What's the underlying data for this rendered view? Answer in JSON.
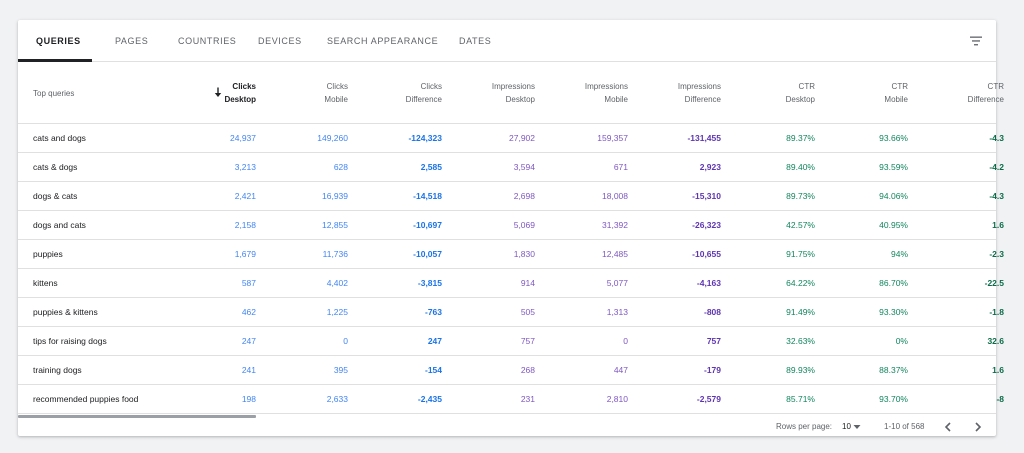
{
  "tabs": [
    "QUERIES",
    "PAGES",
    "COUNTRIES",
    "DEVICES",
    "SEARCH APPEARANCE",
    "DATES"
  ],
  "header": {
    "top_queries": "Top queries",
    "clicks_desktop": [
      "Clicks",
      "Desktop"
    ],
    "clicks_mobile": [
      "Clicks",
      "Mobile"
    ],
    "clicks_diff": [
      "Clicks",
      "Difference"
    ],
    "impr_desktop": [
      "Impressions",
      "Desktop"
    ],
    "impr_mobile": [
      "Impressions",
      "Mobile"
    ],
    "impr_diff": [
      "Impressions",
      "Difference"
    ],
    "ctr_desktop": [
      "CTR",
      "Desktop"
    ],
    "ctr_mobile": [
      "CTR",
      "Mobile"
    ],
    "ctr_diff": [
      "CTR",
      "Difference"
    ]
  },
  "rows": [
    {
      "q": "cats and dogs",
      "cd": "24,937",
      "cm": "149,260",
      "cdf": "-124,323",
      "id": "27,902",
      "im": "159,357",
      "idf": "-131,455",
      "td": "89.37%",
      "tm": "93.66%",
      "tdf": "-4.3"
    },
    {
      "q": "cats & dogs",
      "cd": "3,213",
      "cm": "628",
      "cdf": "2,585",
      "id": "3,594",
      "im": "671",
      "idf": "2,923",
      "td": "89.40%",
      "tm": "93.59%",
      "tdf": "-4.2"
    },
    {
      "q": "dogs & cats",
      "cd": "2,421",
      "cm": "16,939",
      "cdf": "-14,518",
      "id": "2,698",
      "im": "18,008",
      "idf": "-15,310",
      "td": "89.73%",
      "tm": "94.06%",
      "tdf": "-4.3"
    },
    {
      "q": "dogs and cats",
      "cd": "2,158",
      "cm": "12,855",
      "cdf": "-10,697",
      "id": "5,069",
      "im": "31,392",
      "idf": "-26,323",
      "td": "42.57%",
      "tm": "40.95%",
      "tdf": "1.6"
    },
    {
      "q": "puppies",
      "cd": "1,679",
      "cm": "11,736",
      "cdf": "-10,057",
      "id": "1,830",
      "im": "12,485",
      "idf": "-10,655",
      "td": "91.75%",
      "tm": "94%",
      "tdf": "-2.3"
    },
    {
      "q": "kittens",
      "cd": "587",
      "cm": "4,402",
      "cdf": "-3,815",
      "id": "914",
      "im": "5,077",
      "idf": "-4,163",
      "td": "64.22%",
      "tm": "86.70%",
      "tdf": "-22.5"
    },
    {
      "q": "puppies & kittens",
      "cd": "462",
      "cm": "1,225",
      "cdf": "-763",
      "id": "505",
      "im": "1,313",
      "idf": "-808",
      "td": "91.49%",
      "tm": "93.30%",
      "tdf": "-1.8"
    },
    {
      "q": "tips for raising dogs",
      "cd": "247",
      "cm": "0",
      "cdf": "247",
      "id": "757",
      "im": "0",
      "idf": "757",
      "td": "32.63%",
      "tm": "0%",
      "tdf": "32.6"
    },
    {
      "q": "training dogs",
      "cd": "241",
      "cm": "395",
      "cdf": "-154",
      "id": "268",
      "im": "447",
      "idf": "-179",
      "td": "89.93%",
      "tm": "88.37%",
      "tdf": "1.6"
    },
    {
      "q": "recommended puppies food",
      "cd": "198",
      "cm": "2,633",
      "cdf": "-2,435",
      "id": "231",
      "im": "2,810",
      "idf": "-2,579",
      "td": "85.71%",
      "tm": "93.70%",
      "tdf": "-8"
    }
  ],
  "footer": {
    "rows_per_page_label": "Rows per page:",
    "rows_per_page_value": "10",
    "range": "1-10 of 568"
  },
  "icons": {
    "filter": "filter-icon",
    "sort": "arrow-down-icon",
    "dropdown": "caret-down-icon",
    "prev": "chevron-left-icon",
    "next": "chevron-right-icon"
  },
  "colors": {
    "clicks": "#4285f4",
    "impressions": "#7e57c2",
    "ctr": "#12855f"
  }
}
